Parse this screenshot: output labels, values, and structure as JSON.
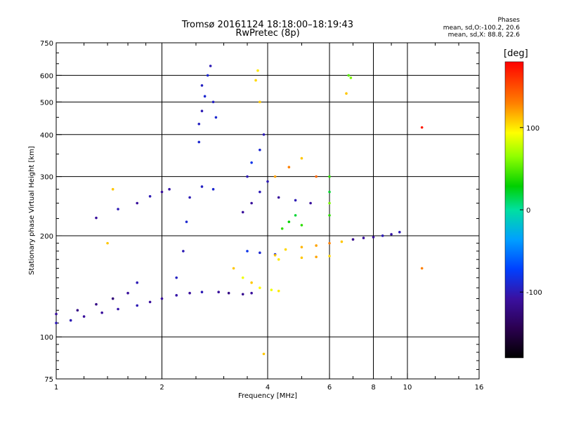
{
  "figure": {
    "title_line1": "Tromsø 20161124 18:18:00–18:19:43",
    "title_line2": "RwPretec (8p)",
    "stats_title": "Phases",
    "stats_o": "mean, sd,O:-100.2, 20.6",
    "stats_x": "mean, sd,X:  88.8, 22.6",
    "colorbar_unit": "[deg]",
    "colorbar_ticks": [
      "100",
      "0",
      "-100"
    ],
    "colorbar_tick_values": [
      100,
      0,
      -100
    ],
    "colorbar_range": [
      -180,
      180
    ]
  },
  "chart_data": {
    "type": "scatter",
    "title": "Tromsø 20161124 18:18:00–18:19:43",
    "subtitle": "RwPretec (8p)",
    "xlabel": "Frequency [MHz]",
    "ylabel": "Stationary phase Virtual Height [km]",
    "xscale": "log",
    "yscale": "log",
    "xlim": [
      1,
      16
    ],
    "ylim": [
      75,
      750
    ],
    "xticks": [
      1,
      2,
      4,
      6,
      8,
      10,
      16
    ],
    "xtick_labels": [
      "1",
      "2",
      "4",
      "6",
      "8",
      "10",
      "16"
    ],
    "yticks": [
      75,
      100,
      200,
      300,
      400,
      500,
      600,
      750
    ],
    "ytick_labels": [
      "75",
      "100",
      "200",
      "300",
      "400",
      "500",
      "600",
      "750"
    ],
    "grid_x": [
      2,
      4,
      6,
      8,
      10
    ],
    "grid_y": [
      100,
      200,
      300,
      400,
      500,
      600
    ],
    "color_variable": "phase [deg]",
    "series": [
      {
        "points": [
          [
            1.0,
            110,
            -100
          ],
          [
            1.1,
            112,
            -100
          ],
          [
            1.2,
            115,
            -110
          ],
          [
            1.35,
            118,
            -110
          ],
          [
            1.5,
            121,
            -105
          ],
          [
            1.7,
            124,
            -100
          ],
          [
            1.85,
            127,
            -110
          ],
          [
            2.0,
            130,
            -110
          ],
          [
            2.2,
            133,
            -105
          ],
          [
            2.4,
            135,
            -110
          ],
          [
            2.6,
            136,
            -100
          ],
          [
            2.9,
            136,
            -110
          ],
          [
            3.1,
            135,
            -120
          ],
          [
            3.4,
            134,
            -115
          ],
          [
            3.6,
            135,
            -110
          ]
        ]
      },
      {
        "points": [
          [
            1.0,
            117,
            -110
          ],
          [
            1.15,
            120,
            -120
          ],
          [
            1.3,
            125,
            -120
          ],
          [
            1.45,
            130,
            -125
          ],
          [
            1.6,
            135,
            -110
          ],
          [
            1.7,
            145,
            -100
          ]
        ]
      },
      {
        "points": [
          [
            1.3,
            226,
            -110
          ],
          [
            1.5,
            240,
            -100
          ],
          [
            1.7,
            250,
            -110
          ],
          [
            1.85,
            262,
            -100
          ],
          [
            2.0,
            270,
            -110
          ],
          [
            2.1,
            275,
            -105
          ]
        ]
      },
      {
        "points": [
          [
            2.55,
            380,
            -90
          ],
          [
            2.55,
            430,
            -95
          ],
          [
            2.6,
            470,
            -100
          ],
          [
            2.65,
            520,
            -90
          ],
          [
            2.6,
            560,
            -95
          ],
          [
            2.7,
            600,
            -90
          ],
          [
            2.75,
            640,
            -100
          ],
          [
            2.8,
            500,
            -95
          ],
          [
            2.85,
            450,
            -90
          ]
        ]
      },
      {
        "points": [
          [
            2.2,
            150,
            -95
          ],
          [
            2.3,
            180,
            -100
          ],
          [
            2.35,
            220,
            -90
          ],
          [
            2.4,
            260,
            -100
          ],
          [
            2.6,
            280,
            -95
          ],
          [
            2.8,
            275,
            -90
          ]
        ]
      },
      {
        "points": [
          [
            3.2,
            160,
            110
          ],
          [
            3.4,
            150,
            90
          ],
          [
            3.6,
            145,
            110
          ],
          [
            3.8,
            140,
            95
          ],
          [
            4.1,
            138,
            90
          ],
          [
            4.3,
            137,
            100
          ]
        ]
      },
      {
        "points": [
          [
            3.4,
            235,
            -110
          ],
          [
            3.6,
            250,
            -110
          ],
          [
            3.8,
            270,
            -100
          ],
          [
            4.0,
            290,
            -100
          ],
          [
            4.3,
            260,
            -110
          ],
          [
            4.8,
            255,
            -100
          ],
          [
            5.3,
            250,
            -110
          ]
        ]
      },
      {
        "points": [
          [
            3.5,
            180,
            -80
          ],
          [
            3.8,
            178,
            -90
          ],
          [
            4.2,
            176,
            -90
          ]
        ]
      },
      {
        "points": [
          [
            3.8,
            500,
            110
          ],
          [
            3.7,
            580,
            105
          ],
          [
            3.75,
            620,
            100
          ]
        ]
      },
      {
        "points": [
          [
            4.2,
            175,
            110
          ],
          [
            4.5,
            182,
            105
          ],
          [
            5.0,
            185,
            115
          ],
          [
            5.5,
            187,
            120
          ],
          [
            6.0,
            190,
            130
          ],
          [
            6.5,
            192,
            110
          ],
          [
            7.0,
            195,
            105
          ]
        ]
      },
      {
        "points": [
          [
            4.3,
            170,
            100
          ],
          [
            5.0,
            172,
            110
          ],
          [
            5.5,
            173,
            120
          ],
          [
            6.0,
            174,
            105
          ]
        ]
      },
      {
        "points": [
          [
            7.0,
            195,
            -110
          ],
          [
            7.5,
            197,
            -110
          ],
          [
            8.0,
            198,
            -110
          ],
          [
            8.5,
            200,
            -100
          ],
          [
            9.0,
            202,
            -105
          ],
          [
            9.5,
            205,
            -100
          ]
        ]
      },
      {
        "points": [
          [
            6.0,
            230,
            40
          ],
          [
            6.0,
            250,
            60
          ],
          [
            6.0,
            270,
            20
          ],
          [
            6.0,
            300,
            40
          ]
        ]
      },
      {
        "points": [
          [
            4.2,
            300,
            120
          ],
          [
            4.6,
            320,
            130
          ],
          [
            5.0,
            340,
            110
          ],
          [
            5.5,
            300,
            140
          ]
        ]
      },
      {
        "points": [
          [
            3.5,
            300,
            -100
          ],
          [
            3.6,
            330,
            -80
          ],
          [
            3.8,
            360,
            -90
          ],
          [
            3.9,
            400,
            -100
          ]
        ]
      },
      {
        "points": [
          [
            4.4,
            210,
            40
          ],
          [
            4.6,
            220,
            30
          ],
          [
            4.8,
            230,
            20
          ],
          [
            5.0,
            215,
            40
          ]
        ]
      },
      {
        "points": [
          [
            6.9,
            590,
            60
          ],
          [
            6.7,
            530,
            110
          ],
          [
            6.8,
            600,
            50
          ]
        ]
      },
      {
        "points": [
          [
            1.45,
            275,
            110
          ],
          [
            1.4,
            190,
            110
          ],
          [
            3.9,
            89,
            110
          ],
          [
            11.0,
            420,
            170
          ],
          [
            11.0,
            160,
            130
          ]
        ]
      }
    ]
  }
}
